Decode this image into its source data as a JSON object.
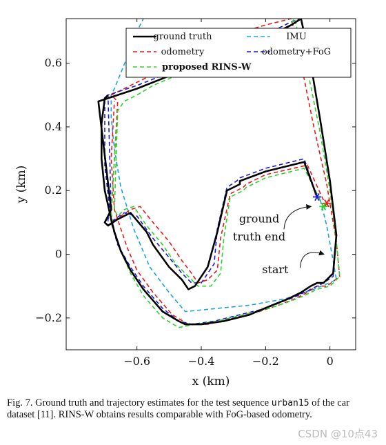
{
  "chart_data": {
    "type": "line",
    "title": "",
    "xlabel": "x (km)",
    "ylabel": "y (km)",
    "xlim": [
      -0.82,
      0.08
    ],
    "ylim": [
      -0.3,
      0.74
    ],
    "xticks": [
      -0.6,
      -0.4,
      -0.2,
      0
    ],
    "xtick_labels": [
      "−0.6",
      "−0.4",
      "−0.2",
      "0"
    ],
    "yticks": [
      -0.2,
      0,
      0.2,
      0.4,
      0.6
    ],
    "ytick_labels": [
      "−0.2",
      "0",
      "0.2",
      "0.4",
      "0.6"
    ],
    "grid": false,
    "legend_position": "top-right",
    "series": [
      {
        "name": "ground truth",
        "color": "#000000",
        "dash": "solid",
        "bold_label": false,
        "x": [
          -0.04,
          -0.08,
          -0.2,
          -0.28,
          -0.28,
          -0.32,
          -0.35,
          -0.35,
          -0.38,
          -0.4,
          -0.42,
          -0.44,
          -0.46,
          -0.5,
          -0.55,
          -0.57,
          -0.62,
          -0.66,
          -0.69,
          -0.7,
          -0.7,
          -0.69,
          -0.68,
          -0.72,
          -0.6,
          -0.5,
          -0.4,
          -0.3,
          -0.2,
          -0.12,
          -0.09,
          -0.06,
          -0.03,
          0.0,
          0.02,
          0.01,
          -0.02,
          -0.04,
          -0.06,
          -0.09,
          -0.13,
          -0.18,
          -0.25,
          -0.33,
          -0.4,
          -0.45,
          -0.47,
          -0.52,
          -0.58,
          -0.62,
          -0.65,
          -0.67,
          -0.68,
          -0.7,
          -0.71,
          -0.71,
          -0.7,
          -0.69
        ],
        "y": [
          0.18,
          0.29,
          0.26,
          0.23,
          0.22,
          0.2,
          0.07,
          0.07,
          -0.04,
          -0.07,
          -0.1,
          -0.11,
          -0.08,
          -0.04,
          0.03,
          0.07,
          0.13,
          0.11,
          0.09,
          0.1,
          0.1,
          0.12,
          0.14,
          0.48,
          0.52,
          0.56,
          0.6,
          0.64,
          0.68,
          0.72,
          0.74,
          0.6,
          0.42,
          0.23,
          0.06,
          -0.06,
          -0.09,
          -0.09,
          -0.1,
          -0.12,
          -0.14,
          -0.16,
          -0.19,
          -0.21,
          -0.22,
          -0.22,
          -0.21,
          -0.18,
          -0.11,
          -0.05,
          0.01,
          0.07,
          0.11,
          0.2,
          0.3,
          0.41,
          0.49,
          0.5
        ]
      },
      {
        "name": "IMU",
        "color": "#1ba3e0",
        "dash": "dashed",
        "bold_label": false,
        "x": [
          -0.03,
          -0.01,
          0.01,
          0.02,
          -0.05,
          -0.14,
          -0.25,
          -0.35,
          -0.45,
          -0.5,
          -0.56,
          -0.61,
          -0.65,
          -0.67,
          -0.68,
          -0.68,
          -0.67,
          -0.63,
          -0.6,
          -0.57
        ],
        "y": [
          0.17,
          0.09,
          -0.02,
          -0.08,
          -0.11,
          -0.14,
          -0.16,
          -0.17,
          -0.18,
          -0.12,
          -0.04,
          0.08,
          0.21,
          0.33,
          0.43,
          0.5,
          0.52,
          0.62,
          0.7,
          0.76
        ]
      },
      {
        "name": "odometry",
        "color": "#e81a1a",
        "dash": "dashed",
        "bold_label": false,
        "x": [
          -0.02,
          -0.07,
          -0.2,
          -0.26,
          -0.27,
          -0.31,
          -0.34,
          -0.35,
          -0.38,
          -0.41,
          -0.43,
          -0.46,
          -0.5,
          -0.55,
          -0.59,
          -0.62,
          -0.65,
          -0.68,
          -0.68,
          -0.66,
          -0.68,
          -0.62,
          -0.54,
          -0.46,
          -0.38,
          -0.3,
          -0.2,
          -0.12,
          -0.09,
          -0.05,
          -0.01,
          0.02,
          0.03,
          -0.01,
          -0.04,
          -0.07,
          -0.11,
          -0.16,
          -0.22,
          -0.3,
          -0.38,
          -0.44,
          -0.49,
          -0.55,
          -0.6,
          -0.63,
          -0.65,
          -0.67,
          -0.68,
          -0.67
        ],
        "y": [
          0.17,
          0.28,
          0.25,
          0.22,
          0.21,
          0.19,
          0.05,
          -0.05,
          -0.08,
          -0.09,
          -0.06,
          -0.02,
          0.04,
          0.1,
          0.15,
          0.14,
          0.12,
          0.1,
          0.12,
          0.48,
          0.5,
          0.53,
          0.57,
          0.61,
          0.65,
          0.69,
          0.72,
          0.74,
          0.6,
          0.4,
          0.22,
          0.04,
          -0.07,
          -0.1,
          -0.1,
          -0.12,
          -0.14,
          -0.16,
          -0.18,
          -0.2,
          -0.22,
          -0.22,
          -0.19,
          -0.12,
          -0.05,
          0.02,
          0.08,
          0.14,
          0.3,
          0.48
        ]
      },
      {
        "name": "odometry+FoG",
        "color": "#1a1ad6",
        "dash": "dashed",
        "bold_label": false,
        "x": [
          -0.04,
          -0.08,
          -0.2,
          -0.28,
          -0.29,
          -0.32,
          -0.35,
          -0.36,
          -0.4,
          -0.43,
          -0.46,
          -0.5,
          -0.55,
          -0.6,
          -0.64,
          -0.67,
          -0.69,
          -0.69,
          -0.68,
          -0.69,
          -0.6,
          -0.5,
          -0.4,
          -0.3,
          -0.2,
          -0.12,
          -0.09,
          -0.06,
          -0.03,
          0.0,
          0.02,
          0.01,
          -0.02,
          -0.06,
          -0.1,
          -0.15,
          -0.2,
          -0.28,
          -0.36,
          -0.43,
          -0.47,
          -0.52,
          -0.58,
          -0.62,
          -0.66,
          -0.68,
          -0.7,
          -0.7
        ],
        "y": [
          0.18,
          0.3,
          0.27,
          0.24,
          0.23,
          0.21,
          0.08,
          -0.03,
          -0.09,
          -0.09,
          -0.06,
          -0.01,
          0.05,
          0.12,
          0.13,
          0.11,
          0.09,
          0.11,
          0.14,
          0.5,
          0.53,
          0.57,
          0.61,
          0.65,
          0.69,
          0.73,
          0.74,
          0.6,
          0.42,
          0.23,
          0.06,
          -0.07,
          -0.09,
          -0.11,
          -0.13,
          -0.15,
          -0.17,
          -0.19,
          -0.21,
          -0.22,
          -0.21,
          -0.17,
          -0.1,
          -0.04,
          0.03,
          0.1,
          0.28,
          0.48
        ]
      },
      {
        "name": "proposed RINS-W",
        "color": "#2ed12e",
        "dash": "dashed",
        "bold_label": true,
        "x": [
          -0.02,
          -0.08,
          -0.2,
          -0.26,
          -0.27,
          -0.31,
          -0.33,
          -0.34,
          -0.37,
          -0.41,
          -0.44,
          -0.48,
          -0.52,
          -0.57,
          -0.61,
          -0.64,
          -0.66,
          -0.67,
          -0.66,
          -0.64,
          -0.6,
          -0.55,
          -0.48,
          -0.4,
          -0.3,
          -0.2,
          -0.14,
          -0.11,
          -0.07,
          -0.03,
          0.0,
          0.02,
          0.03,
          0.0,
          -0.04,
          -0.08,
          -0.13,
          -0.19,
          -0.27,
          -0.35,
          -0.42,
          -0.47,
          -0.52,
          -0.58,
          -0.62,
          -0.65,
          -0.67,
          -0.68,
          -0.67,
          -0.66
        ],
        "y": [
          0.15,
          0.27,
          0.24,
          0.21,
          0.2,
          0.18,
          0.05,
          -0.06,
          -0.1,
          -0.1,
          -0.07,
          -0.03,
          0.03,
          0.09,
          0.15,
          0.14,
          0.12,
          0.14,
          0.45,
          0.48,
          0.5,
          0.53,
          0.56,
          0.59,
          0.62,
          0.66,
          0.7,
          0.74,
          0.58,
          0.38,
          0.2,
          0.04,
          -0.07,
          -0.1,
          -0.11,
          -0.13,
          -0.15,
          -0.17,
          -0.19,
          -0.21,
          -0.22,
          -0.23,
          -0.2,
          -0.13,
          -0.06,
          0.01,
          0.07,
          0.13,
          0.3,
          0.44
        ]
      }
    ],
    "end_markers": [
      {
        "series": "odometry+FoG",
        "x": -0.04,
        "y": 0.18,
        "color": "#1a1ad6"
      },
      {
        "series": "odometry",
        "x": -0.01,
        "y": 0.16,
        "color": "#e81a1a"
      },
      {
        "series": "proposed RINS-W",
        "x": -0.02,
        "y": 0.15,
        "color": "#2ed12e"
      }
    ],
    "annotations": [
      {
        "lines": [
          "ground",
          "truth end"
        ],
        "x": -0.22,
        "y": 0.1,
        "arrow_to": [
          -0.05,
          0.15
        ]
      },
      {
        "lines": [
          "start"
        ],
        "x": -0.17,
        "y": -0.06,
        "arrow_to": [
          -0.01,
          0.0
        ]
      }
    ]
  },
  "caption": {
    "prefix": "Fig. 7.  Ground truth and trajectory estimates for the test sequence",
    "code": "urban15",
    "suffix": "of the car dataset [11]. RINS-W obtains results comparable with FoG-based odometry."
  },
  "watermark": "CSDN @10点43"
}
